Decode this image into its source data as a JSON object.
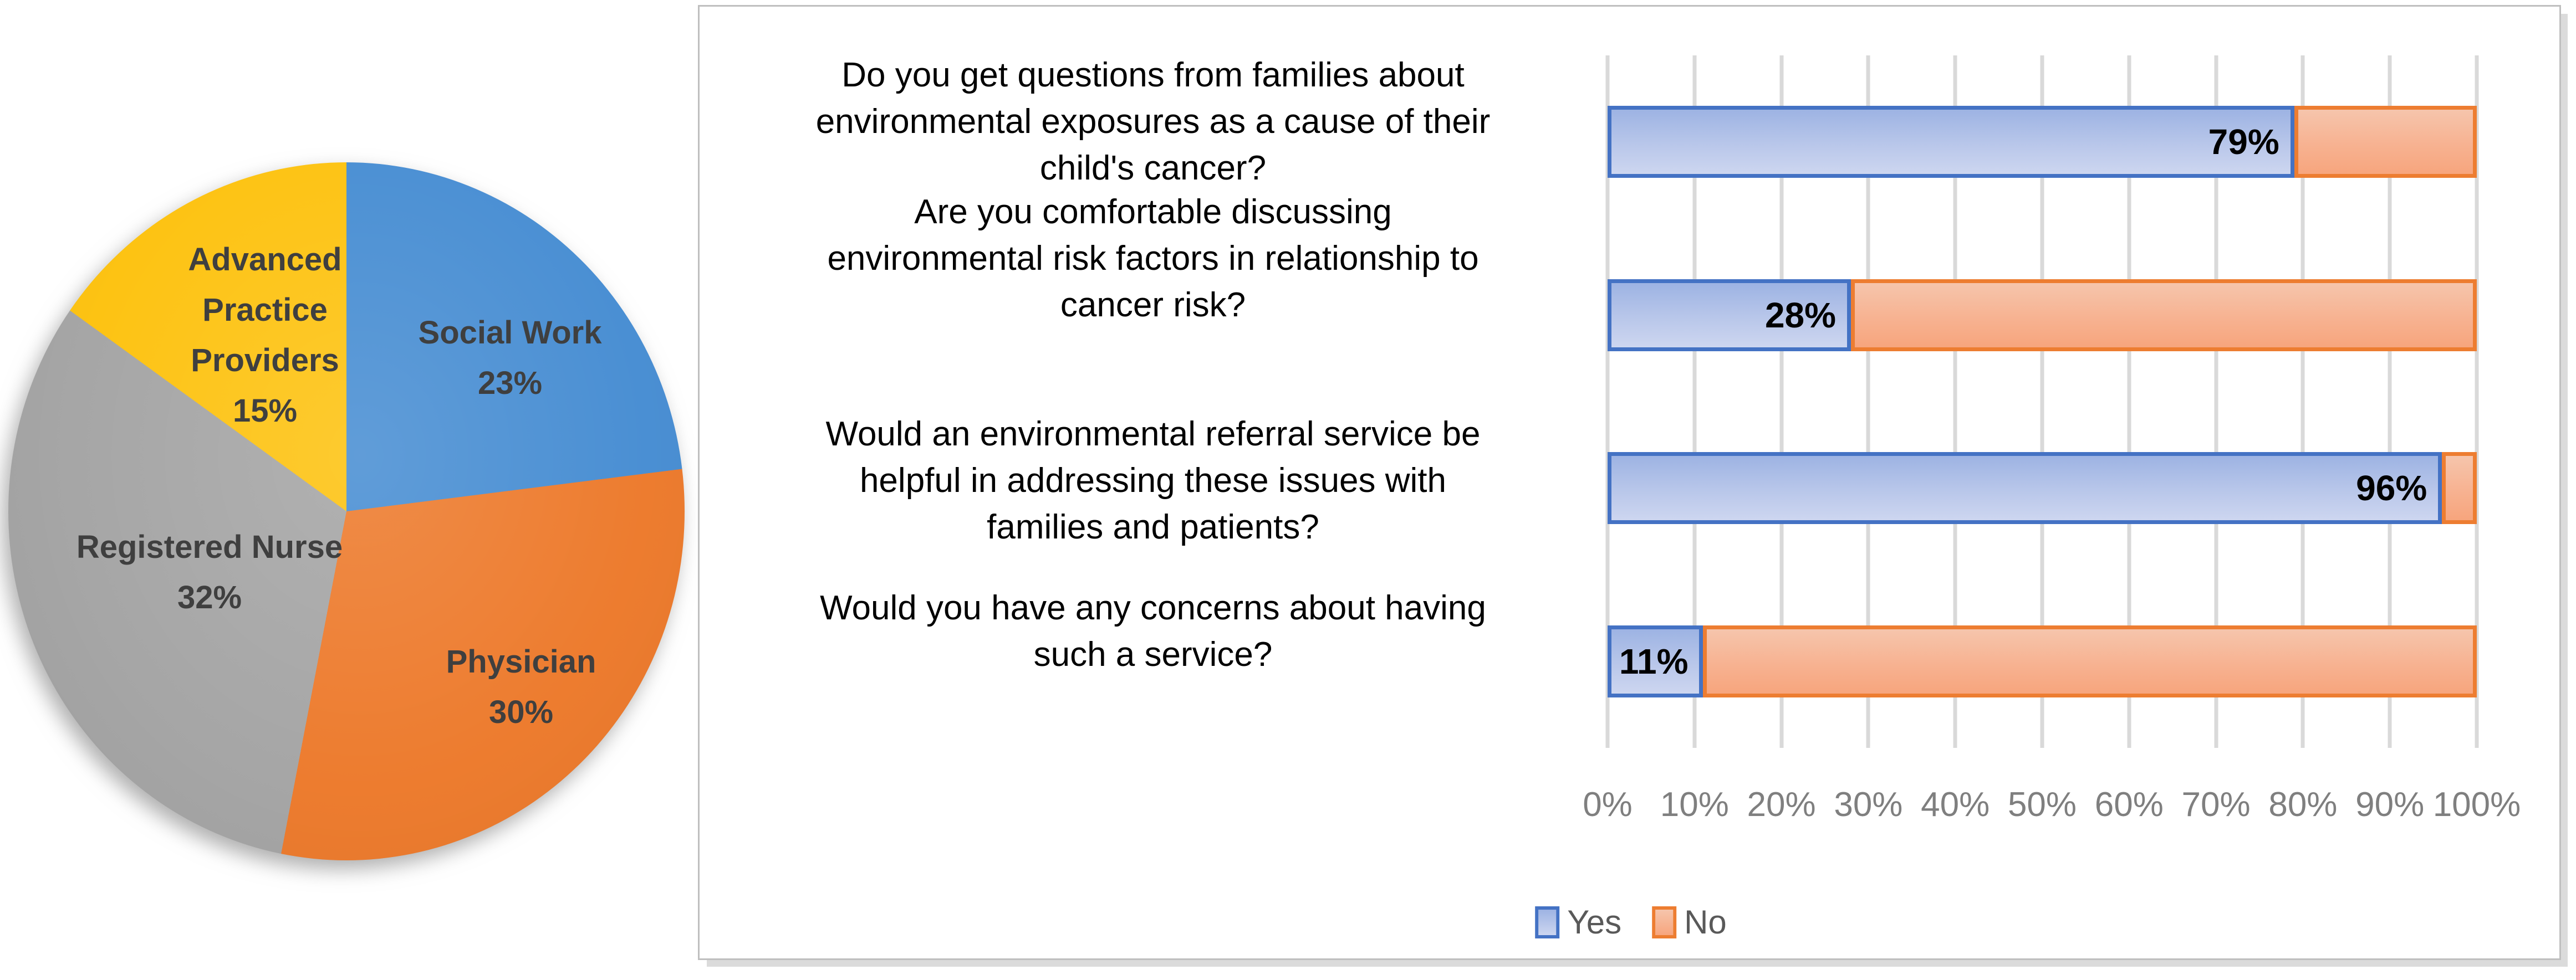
{
  "pie_chart": {
    "slices": [
      {
        "name": "Social Work",
        "label_lines": [
          "Social Work"
        ],
        "value": 23,
        "value_label": "23%",
        "color": "#4A8FD3"
      },
      {
        "name": "Physician",
        "label_lines": [
          "Physician"
        ],
        "value": 30,
        "value_label": "30%",
        "color": "#ED7C2F"
      },
      {
        "name": "Registered Nurse",
        "label_lines": [
          "Registered Nurse"
        ],
        "value": 32,
        "value_label": "32%",
        "color": "#A6A6A6"
      },
      {
        "name": "Advanced Practice Providers",
        "label_lines": [
          "Advanced",
          "Practice",
          "Providers"
        ],
        "value": 15,
        "value_label": "15%",
        "color": "#FDC313"
      }
    ]
  },
  "bar_chart": {
    "rows": [
      {
        "question_lines": [
          "Do you get questions from families about",
          "environmental exposures as a cause of their",
          "child's cancer?"
        ],
        "yes_pct": 79,
        "no_pct": 21,
        "yes_label": "79%"
      },
      {
        "question_lines": [
          "Are you comfortable discussing",
          "environmental risk factors in relationship to",
          "cancer risk?"
        ],
        "yes_pct": 28,
        "no_pct": 72,
        "yes_label": "28%"
      },
      {
        "question_lines": [
          "Would an environmental referral service be",
          "helpful in addressing these issues with",
          "families and patients?"
        ],
        "yes_pct": 96,
        "no_pct": 4,
        "yes_label": "96%"
      },
      {
        "question_lines": [
          "Would you have any concerns about having",
          "such a service?"
        ],
        "yes_pct": 11,
        "no_pct": 89,
        "yes_label": "11%"
      }
    ],
    "x_ticks": [
      "0%",
      "10%",
      "20%",
      "30%",
      "40%",
      "50%",
      "60%",
      "70%",
      "80%",
      "90%",
      "100%"
    ],
    "legend": [
      {
        "label": "Yes",
        "color": "#4472C4"
      },
      {
        "label": "No",
        "color": "#ED7D31"
      }
    ]
  },
  "colors": {
    "yes_border": "#4472C4",
    "yes_fill_top": "#9DB3E3",
    "yes_fill_bottom": "#CDD6F0",
    "no_border": "#ED7D31",
    "no_fill_top": "#F6C5AC",
    "no_fill_bottom": "#F7A57D",
    "gridline": "#D9D9D9",
    "tick_text": "#7F7F7F",
    "legend_text": "#595959",
    "pie_label_text": "#3F3F3F",
    "panel_border": "#BFBFBF"
  },
  "chart_data": [
    {
      "type": "pie",
      "title": "",
      "labels": [
        "Social Work",
        "Physician",
        "Registered Nurse",
        "Advanced Practice Providers"
      ],
      "values": [
        23,
        30,
        32,
        15
      ],
      "colors": [
        "#4A8FD3",
        "#ED7C2F",
        "#A6A6A6",
        "#FDC313"
      ],
      "data_labels": [
        "Social Work 23%",
        "Physician 30%",
        "Registered Nurse 32%",
        "Advanced Practice Providers 15%"
      ],
      "start_angle_deg": 0,
      "direction": "clockwise",
      "legend_position": "none"
    },
    {
      "type": "bar",
      "orientation": "horizontal",
      "stacked": true,
      "categories": [
        "Do you get questions from families about environmental exposures as a cause of their child's cancer?",
        "Are you comfortable discussing environmental risk factors in relationship to cancer risk?",
        "Would an environmental referral service be helpful in addressing these issues with families and patients?",
        "Would you have any concerns about having such a service?"
      ],
      "series": [
        {
          "name": "Yes",
          "values": [
            79,
            28,
            96,
            11
          ],
          "color": "#4472C4"
        },
        {
          "name": "No",
          "values": [
            21,
            72,
            4,
            89
          ],
          "color": "#ED7D31"
        }
      ],
      "data_labels_series": "Yes",
      "data_labels": [
        "79%",
        "28%",
        "96%",
        "11%"
      ],
      "xlabel": "",
      "ylabel": "",
      "xlim": [
        0,
        100
      ],
      "x_tick_labels": [
        "0%",
        "10%",
        "20%",
        "30%",
        "40%",
        "50%",
        "60%",
        "70%",
        "80%",
        "90%",
        "100%"
      ],
      "grid": true,
      "legend_position": "bottom"
    }
  ]
}
